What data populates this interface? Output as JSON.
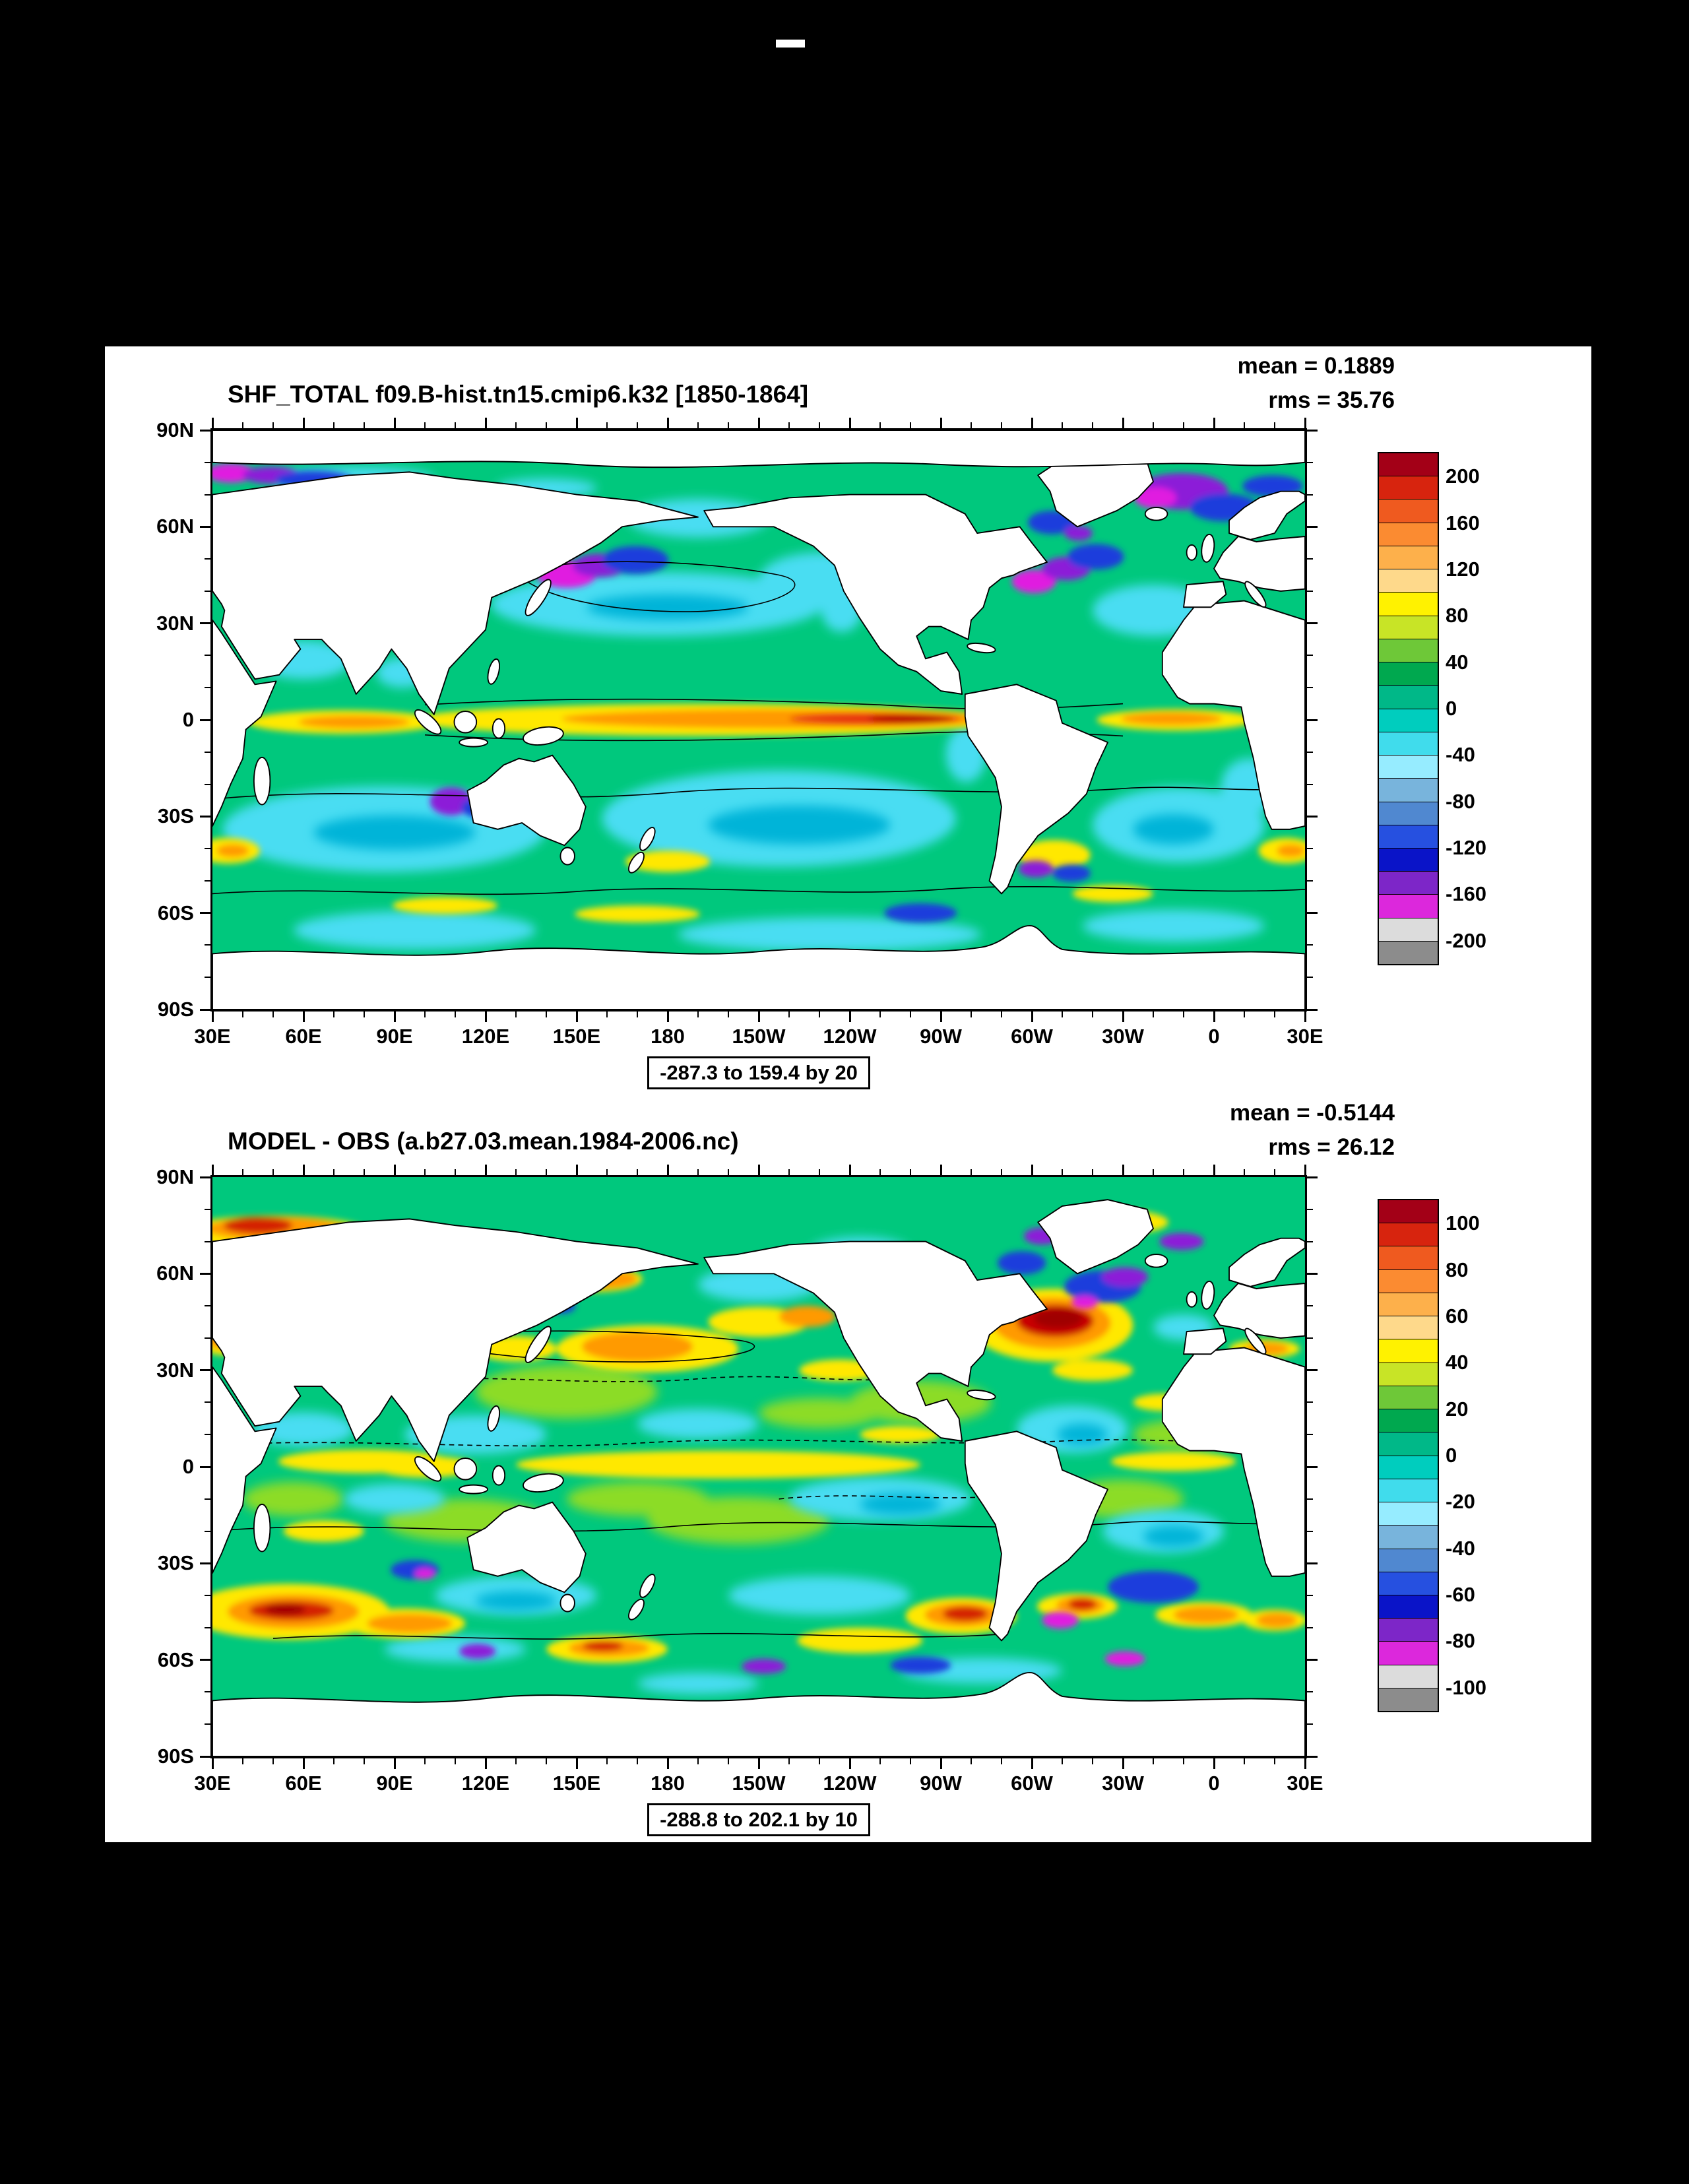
{
  "window": {
    "background": "#000000",
    "plot_background": "#ffffff"
  },
  "panels": [
    {
      "title": "SHF_TOTAL f09.B-hist.tn15.cmip6.k32 [1850-1864]",
      "stats": {
        "mean_label": "mean = 0.1889",
        "rms_label": "rms = 35.76"
      },
      "range_label": "-287.3 to 159.4 by 20",
      "colorbar": {
        "labels": [
          "200",
          "160",
          "120",
          "80",
          "40",
          "0",
          "-40",
          "-80",
          "-120",
          "-160",
          "-200"
        ]
      }
    },
    {
      "title": "MODEL - OBS (a.b27.03.mean.1984-2006.nc)",
      "stats": {
        "mean_label": "mean = -0.5144",
        "rms_label": "rms = 26.12"
      },
      "range_label": "-288.8 to 202.1 by 10",
      "colorbar": {
        "labels": [
          "100",
          "80",
          "60",
          "40",
          "20",
          "0",
          "-20",
          "-40",
          "-60",
          "-80",
          "-100"
        ]
      }
    }
  ],
  "axes": {
    "lat_labels": [
      "90N",
      "60N",
      "30N",
      "0",
      "30S",
      "60S",
      "90S"
    ],
    "lon_labels": [
      "30E",
      "60E",
      "90E",
      "120E",
      "150E",
      "180",
      "150W",
      "120W",
      "90W",
      "60W",
      "30W",
      "0",
      "30E"
    ]
  },
  "colorbar_colors": [
    "#a30017",
    "#d7240e",
    "#ef5a1f",
    "#fb8b31",
    "#fdb04b",
    "#fed98b",
    "#fff200",
    "#c8e426",
    "#6ec838",
    "#00a84f",
    "#00b888",
    "#00cdbe",
    "#40dcec",
    "#96ecff",
    "#78b4dc",
    "#5088d0",
    "#2650e0",
    "#0a14c8",
    "#7d26c8",
    "#dc28dc",
    "#dcdcdc",
    "#8c8c8c"
  ],
  "chart_data": [
    {
      "type": "heatmap",
      "subtype": "filled-contour global map, cylindrical equidistant, longitudes 30E eastward to 30E",
      "title": "SHF_TOTAL f09.B-hist.tn15.cmip6.k32 [1850-1864]",
      "variable": "SHF_TOTAL",
      "stats": {
        "mean": 0.1889,
        "rms": 35.76
      },
      "field_min": -287.3,
      "field_max": 159.4,
      "contour_interval": 20,
      "colorbar_tick_values": [
        200,
        160,
        120,
        80,
        40,
        0,
        -40,
        -80,
        -120,
        -160,
        -200
      ],
      "x_ticks": [
        "30E",
        "60E",
        "90E",
        "120E",
        "150E",
        "180",
        "150W",
        "120W",
        "90W",
        "60W",
        "30W",
        "0",
        "30E"
      ],
      "y_ticks": [
        "90N",
        "60N",
        "30N",
        "0",
        "30S",
        "60S",
        "90S"
      ],
      "legend_position": "right",
      "land_color": "white",
      "notable": "Orange/red positive band along the equatorial Pacific with red core near 120W-95W; purple/blue negative patches in Kuroshio, Gulf Stream and Nordic Seas; broad green/cyan near-zero field elsewhere"
    },
    {
      "type": "heatmap",
      "subtype": "filled-contour global map, cylindrical equidistant, longitudes 30E eastward to 30E",
      "title": "MODEL - OBS (a.b27.03.mean.1984-2006.nc)",
      "variable": "SHF_TOTAL model minus observations",
      "stats": {
        "mean": -0.5144,
        "rms": 26.12
      },
      "field_min": -288.8,
      "field_max": 202.1,
      "contour_interval": 10,
      "colorbar_tick_values": [
        100,
        80,
        60,
        40,
        20,
        0,
        -20,
        -40,
        -60,
        -80,
        -100
      ],
      "x_ticks": [
        "30E",
        "60E",
        "90E",
        "120E",
        "150E",
        "180",
        "150W",
        "120W",
        "90W",
        "60W",
        "30W",
        "0",
        "30E"
      ],
      "y_ticks": [
        "90N",
        "60N",
        "30N",
        "0",
        "30S",
        "60S",
        "90S"
      ],
      "legend_position": "right",
      "land_color": "white",
      "notable": "Mottled yellow/green differences; strong red positive bias in Gulf Stream region near 40N; red/orange patches in Barents Sea and Southern Ocean near 45-55S; blue/purple negative patches in subpolar North Atlantic and south of Australia"
    }
  ]
}
